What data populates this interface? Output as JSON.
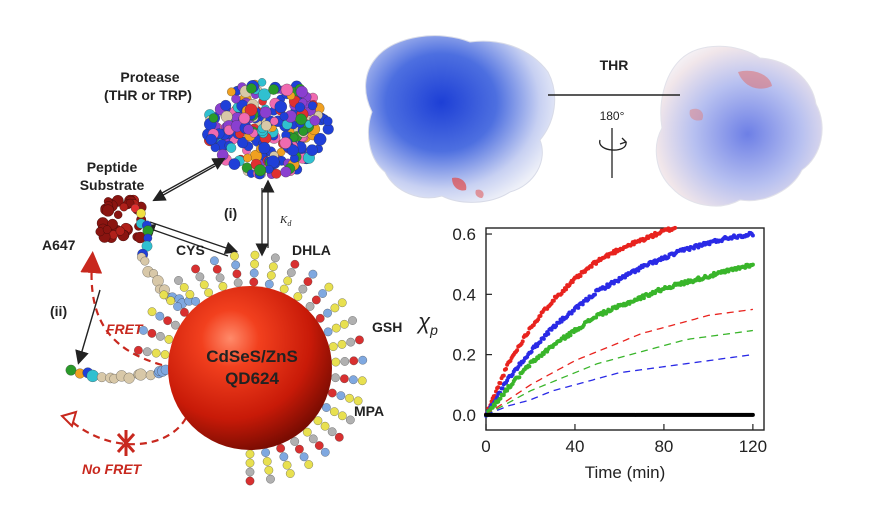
{
  "schematic": {
    "protease": "Protease",
    "protease_sub": "(THR or TRP)",
    "peptide_line1": "Peptide",
    "peptide_line2": "Substrate",
    "step_i": "(i)",
    "step_ii": "(ii)",
    "kd": "K",
    "kd_sub": "d",
    "a647": "A647",
    "cys": "CYS",
    "dhla": "DHLA",
    "gsh": "GSH",
    "mpa": "MPA",
    "fret": "FRET",
    "no_fret": "No FRET",
    "qd_line1": "CdSeS/ZnS",
    "qd_line2": "QD624"
  },
  "structure": {
    "label": "THR",
    "rotation": "180°"
  },
  "colors": {
    "red": "#e8231e",
    "blue": "#2a2ae6",
    "green": "#39b52a",
    "black": "#000000",
    "qd": "#d91e0c",
    "fret_arrow": "#c8281e"
  },
  "chart_data": {
    "type": "line",
    "xlabel": "Time (min)",
    "ylabel": "χ",
    "ylabel_sub": "p",
    "xlim": [
      0,
      125
    ],
    "ylim": [
      -0.05,
      0.62
    ],
    "xticks": [
      0,
      40,
      80,
      120
    ],
    "yticks": [
      0.0,
      0.2,
      0.4,
      0.6
    ],
    "ytick_labels": [
      "0.0",
      "0.2",
      "0.4",
      "0.6"
    ],
    "series": [
      {
        "color": "#e8231e",
        "style": "points",
        "x": [
          0,
          10,
          20,
          30,
          40,
          50,
          60,
          70,
          80,
          90,
          100,
          110,
          120
        ],
        "y": [
          0,
          0.17,
          0.29,
          0.38,
          0.45,
          0.51,
          0.55,
          0.58,
          0.61,
          0.63,
          0.65,
          0.66,
          0.67
        ]
      },
      {
        "color": "#2a2ae6",
        "style": "points",
        "x": [
          0,
          10,
          20,
          30,
          40,
          50,
          60,
          70,
          80,
          90,
          100,
          110,
          120
        ],
        "y": [
          0,
          0.12,
          0.21,
          0.29,
          0.35,
          0.41,
          0.45,
          0.49,
          0.52,
          0.55,
          0.57,
          0.59,
          0.6
        ]
      },
      {
        "color": "#39b52a",
        "style": "points",
        "x": [
          0,
          10,
          20,
          30,
          40,
          50,
          60,
          70,
          80,
          90,
          100,
          110,
          120
        ],
        "y": [
          0,
          0.09,
          0.17,
          0.23,
          0.28,
          0.33,
          0.36,
          0.39,
          0.42,
          0.44,
          0.46,
          0.48,
          0.5
        ]
      },
      {
        "color": "#e8231e",
        "style": "dashed",
        "x": [
          0,
          10,
          20,
          30,
          40,
          50,
          60,
          70,
          80,
          90,
          100,
          110,
          120
        ],
        "y": [
          0,
          0.05,
          0.1,
          0.14,
          0.18,
          0.21,
          0.24,
          0.27,
          0.29,
          0.31,
          0.33,
          0.34,
          0.35
        ]
      },
      {
        "color": "#39b52a",
        "style": "dashed",
        "x": [
          0,
          10,
          20,
          30,
          40,
          50,
          60,
          70,
          80,
          90,
          100,
          110,
          120
        ],
        "y": [
          0,
          0.04,
          0.08,
          0.11,
          0.14,
          0.17,
          0.19,
          0.21,
          0.23,
          0.25,
          0.26,
          0.27,
          0.28
        ]
      },
      {
        "color": "#2a2ae6",
        "style": "dashed",
        "x": [
          0,
          10,
          20,
          30,
          40,
          50,
          60,
          70,
          80,
          90,
          100,
          110,
          120
        ],
        "y": [
          0,
          0.03,
          0.05,
          0.08,
          0.1,
          0.12,
          0.14,
          0.15,
          0.16,
          0.17,
          0.18,
          0.19,
          0.2
        ]
      },
      {
        "color": "#000000",
        "style": "points",
        "x": [
          0,
          10,
          20,
          30,
          40,
          50,
          60,
          70,
          80,
          90,
          100,
          110,
          120
        ],
        "y": [
          0,
          0,
          0,
          0,
          0,
          0,
          0,
          0,
          0,
          0,
          0,
          0,
          0
        ]
      }
    ]
  }
}
